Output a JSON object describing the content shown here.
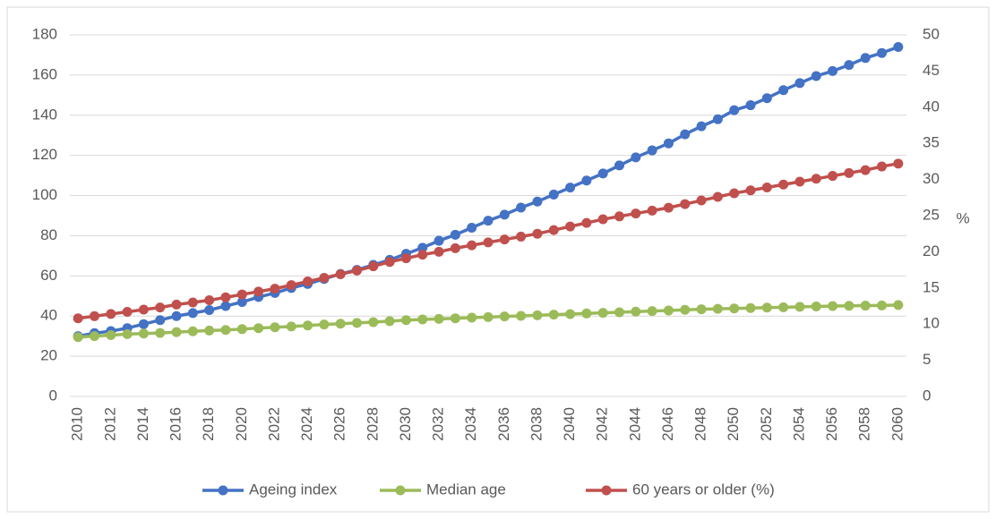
{
  "chart_data": {
    "type": "line",
    "x": [
      2010,
      2011,
      2012,
      2013,
      2014,
      2015,
      2016,
      2017,
      2018,
      2019,
      2020,
      2021,
      2022,
      2023,
      2024,
      2025,
      2026,
      2027,
      2028,
      2029,
      2030,
      2031,
      2032,
      2033,
      2034,
      2035,
      2036,
      2037,
      2038,
      2039,
      2040,
      2041,
      2042,
      2043,
      2044,
      2045,
      2046,
      2047,
      2048,
      2049,
      2050,
      2051,
      2052,
      2053,
      2054,
      2055,
      2056,
      2057,
      2058,
      2059,
      2060
    ],
    "xlim": [
      2009.5,
      2060.5
    ],
    "xticks": [
      2010,
      2012,
      2014,
      2016,
      2018,
      2020,
      2022,
      2024,
      2026,
      2028,
      2030,
      2032,
      2034,
      2036,
      2038,
      2040,
      2042,
      2044,
      2046,
      2048,
      2050,
      2052,
      2054,
      2056,
      2058,
      2060
    ],
    "ylim": [
      0,
      180
    ],
    "yticks": [
      0,
      20,
      40,
      60,
      80,
      100,
      120,
      140,
      160,
      180
    ],
    "y2lim": [
      0,
      50
    ],
    "y2ticks": [
      0,
      5,
      10,
      15,
      20,
      25,
      30,
      35,
      40,
      45,
      50
    ],
    "y2label": "%",
    "grid": true,
    "legend": "bottom",
    "series": [
      {
        "name": "Ageing index",
        "color": "#4472c4",
        "values": [
          30,
          31.5,
          32.5,
          34,
          36,
          38,
          40,
          41.5,
          43,
          45,
          47,
          49.5,
          51.5,
          54,
          56,
          58.5,
          61,
          63,
          65.5,
          68,
          71,
          74,
          77.5,
          80.5,
          84,
          87.5,
          90.5,
          94,
          97,
          100.5,
          104,
          107.5,
          111,
          115,
          119,
          122.5,
          126,
          130.5,
          134.5,
          138,
          142.5,
          145,
          148.5,
          152.5,
          156,
          159.5,
          162,
          165,
          168.5,
          171,
          174
        ]
      },
      {
        "name": "Median age",
        "color": "#9bbb59",
        "values": [
          29.5,
          30,
          30.5,
          31,
          31.3,
          31.6,
          32,
          32.4,
          32.8,
          33.1,
          33.5,
          34,
          34.4,
          34.8,
          35.3,
          35.8,
          36.2,
          36.6,
          37,
          37.5,
          38,
          38.3,
          38.6,
          38.9,
          39.2,
          39.5,
          39.8,
          40.1,
          40.4,
          40.7,
          41,
          41.3,
          41.6,
          41.9,
          42.2,
          42.5,
          42.8,
          43.1,
          43.4,
          43.6,
          43.8,
          44,
          44.2,
          44.4,
          44.6,
          44.8,
          45,
          45.1,
          45.2,
          45.3,
          45.5
        ]
      },
      {
        "name": "60 years or older (%)",
        "color": "#c0504d",
        "axis": "y2",
        "values": [
          10.8,
          11.1,
          11.4,
          11.7,
          12.0,
          12.3,
          12.7,
          13.0,
          13.3,
          13.7,
          14.1,
          14.5,
          14.9,
          15.4,
          15.9,
          16.4,
          16.9,
          17.4,
          18.0,
          18.6,
          19.1,
          19.6,
          20.0,
          20.5,
          20.9,
          21.3,
          21.7,
          22.1,
          22.5,
          23.0,
          23.5,
          24.0,
          24.5,
          24.9,
          25.3,
          25.7,
          26.1,
          26.6,
          27.1,
          27.6,
          28.1,
          28.5,
          28.9,
          29.3,
          29.7,
          30.1,
          30.5,
          30.9,
          31.3,
          31.8,
          32.2
        ]
      }
    ]
  }
}
